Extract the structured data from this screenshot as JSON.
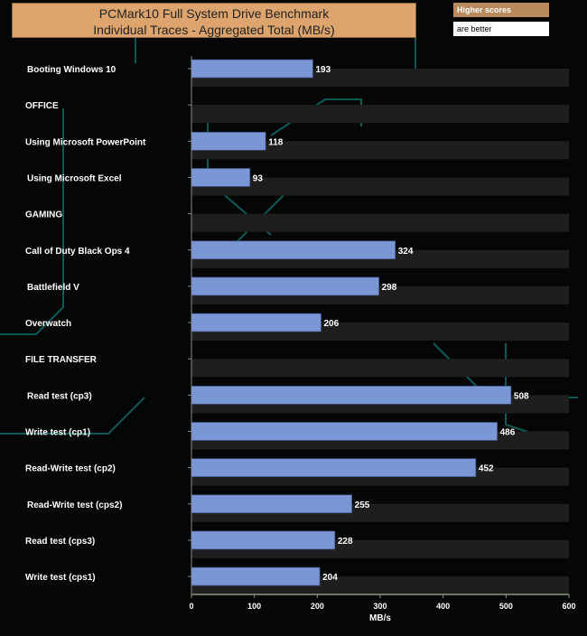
{
  "chart_data": {
    "type": "bar",
    "orientation": "horizontal",
    "title": "PCMark10 Full System Drive Benchmark",
    "subtitle": "Individual Traces - Aggregated Total (MB/s)",
    "xlabel": "MB/s",
    "xlim": [
      0,
      600
    ],
    "xticks": [
      0,
      100,
      200,
      300,
      400,
      500,
      600
    ],
    "categories": [
      "Booting Windows 10",
      "OFFICE",
      "Using Microsoft PowerPoint",
      "Using Microsoft Excel",
      "GAMING",
      "Call of Duty Black Ops 4",
      "Battlefield V",
      "Overwatch",
      "FILE TRANSFER",
      "Read test (cp3)",
      "Write test (cp1)",
      "Read-Write test (cp2)",
      "Read-Write test (cps2)",
      "Read test (cps3)",
      "Write test (cps1)"
    ],
    "values": [
      193,
      null,
      118,
      93,
      null,
      324,
      298,
      206,
      null,
      508,
      486,
      452,
      255,
      228,
      204
    ],
    "bar_color": "#7b96d4",
    "legend": [
      "Higher scores",
      "are better"
    ]
  }
}
